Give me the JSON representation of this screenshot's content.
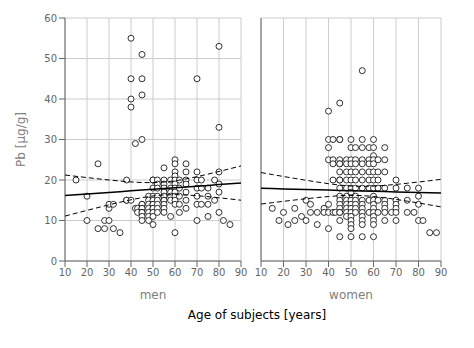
{
  "x_label": "Age of subjects [years]",
  "chart_data": [
    {
      "type": "scatter",
      "x_label": "men",
      "y_label": "Pb [μg/g]",
      "xlim": [
        10,
        90
      ],
      "ylim": [
        0,
        60
      ],
      "xticks": [
        10,
        20,
        30,
        40,
        50,
        60,
        70,
        80,
        90
      ],
      "yticks": [
        0,
        10,
        20,
        30,
        40,
        50,
        60
      ],
      "grid": true,
      "series": [
        {
          "type": "scatter",
          "marker": "open_circle",
          "color": "black",
          "x": [
            15,
            20,
            20,
            25,
            25,
            28,
            28,
            30,
            30,
            30,
            32,
            32,
            35,
            38,
            38,
            38,
            40,
            40,
            40,
            40,
            40,
            42,
            42,
            43,
            43,
            45,
            45,
            45,
            45,
            45,
            45,
            45,
            45,
            45,
            45,
            45,
            45,
            48,
            48,
            48,
            48,
            48,
            48,
            48,
            50,
            50,
            50,
            50,
            50,
            50,
            50,
            50,
            50,
            50,
            50,
            50,
            52,
            52,
            52,
            52,
            52,
            52,
            52,
            52,
            55,
            55,
            55,
            55,
            55,
            55,
            55,
            55,
            55,
            55,
            55,
            58,
            58,
            58,
            58,
            58,
            58,
            60,
            60,
            60,
            60,
            60,
            60,
            60,
            60,
            60,
            60,
            60,
            60,
            62,
            62,
            62,
            62,
            62,
            65,
            65,
            65,
            65,
            65,
            65,
            65,
            70,
            70,
            70,
            70,
            70,
            70,
            70,
            72,
            72,
            72,
            75,
            75,
            75,
            75,
            78,
            78,
            80,
            80,
            80,
            80,
            80,
            80,
            82,
            85
          ],
          "values": [
            20,
            16,
            10,
            24,
            8,
            8,
            10,
            10,
            13,
            14,
            14,
            8,
            7,
            20,
            15,
            15,
            55,
            45,
            40,
            38,
            15,
            29,
            13,
            13,
            12,
            51,
            45,
            41,
            30,
            14,
            14,
            13,
            13,
            12,
            12,
            11,
            10,
            16,
            15,
            14,
            13,
            12,
            11,
            10,
            20,
            20,
            18,
            16,
            15,
            14,
            14,
            13,
            13,
            12,
            11,
            9,
            20,
            19,
            18,
            16,
            15,
            14,
            13,
            12,
            23,
            20,
            19,
            18,
            17,
            16,
            15,
            15,
            14,
            13,
            12,
            20,
            18,
            17,
            16,
            15,
            11,
            25,
            24,
            22,
            21,
            20,
            19,
            18,
            17,
            16,
            15,
            14,
            7,
            20,
            18,
            16,
            14,
            12,
            24,
            22,
            20,
            19,
            17,
            15,
            13,
            45,
            22,
            20,
            18,
            16,
            14,
            10,
            20,
            18,
            14,
            18,
            16,
            14,
            11,
            20,
            15,
            53,
            33,
            22,
            19,
            17,
            12,
            10,
            9
          ]
        },
        {
          "type": "line",
          "line_style": "solid",
          "color": "black",
          "x": [
            10,
            15,
            20,
            25,
            30,
            35,
            40,
            45,
            50,
            55,
            60,
            65,
            70,
            75,
            80,
            85,
            90
          ],
          "values": [
            16.165,
            16.357,
            16.55,
            16.742,
            16.935,
            17.127,
            17.32,
            17.512,
            17.704,
            17.897,
            18.089,
            18.282,
            18.474,
            18.667,
            18.859,
            19.052,
            19.244
          ]
        },
        {
          "type": "line",
          "line_style": "dashed",
          "color": "black",
          "x": [
            10,
            15,
            20,
            25,
            30,
            35,
            40,
            45,
            50,
            55,
            60,
            65,
            70,
            75,
            80,
            85,
            90
          ],
          "values": [
            21.236,
            20.911,
            20.595,
            20.291,
            20.003,
            19.741,
            19.523,
            19.375,
            19.343,
            19.478,
            19.796,
            20.263,
            20.826,
            21.449,
            22.107,
            22.786,
            23.481
          ]
        },
        {
          "type": "line",
          "line_style": "dashed",
          "color": "black",
          "x": [
            10,
            15,
            20,
            25,
            30,
            35,
            40,
            45,
            50,
            55,
            60,
            65,
            70,
            75,
            80,
            85,
            90
          ],
          "values": [
            11.094,
            11.803,
            12.504,
            13.194,
            13.867,
            14.513,
            15.117,
            15.649,
            16.066,
            16.316,
            16.383,
            16.301,
            16.122,
            15.885,
            15.612,
            15.317,
            15.007
          ]
        }
      ]
    },
    {
      "type": "scatter",
      "x_label": "women",
      "xlim": [
        10,
        90
      ],
      "ylim": [
        0,
        60
      ],
      "xticks": [
        10,
        20,
        30,
        40,
        50,
        60,
        70,
        80,
        90
      ],
      "yticks": [
        0,
        10,
        20,
        30,
        40,
        50,
        60
      ],
      "grid": true,
      "tick_labels": "x",
      "series": [
        {
          "type": "scatter",
          "marker": "open_circle",
          "color": "black",
          "x": [
            15,
            18,
            20,
            22,
            25,
            25,
            28,
            30,
            30,
            32,
            32,
            35,
            35,
            38,
            38,
            40,
            40,
            40,
            40,
            40,
            40,
            40,
            42,
            42,
            42,
            42,
            42,
            43,
            45,
            45,
            45,
            45,
            45,
            45,
            45,
            45,
            45,
            45,
            45,
            45,
            45,
            45,
            45,
            45,
            45,
            45,
            48,
            48,
            48,
            48,
            48,
            48,
            48,
            48,
            48,
            48,
            48,
            50,
            50,
            50,
            50,
            50,
            50,
            50,
            50,
            50,
            50,
            50,
            50,
            50,
            50,
            50,
            50,
            50,
            52,
            52,
            52,
            52,
            52,
            52,
            52,
            52,
            52,
            52,
            52,
            55,
            55,
            55,
            55,
            55,
            55,
            55,
            55,
            55,
            55,
            55,
            55,
            55,
            55,
            55,
            55,
            58,
            58,
            58,
            58,
            58,
            58,
            58,
            58,
            60,
            60,
            60,
            60,
            60,
            60,
            60,
            60,
            60,
            60,
            60,
            60,
            60,
            60,
            60,
            60,
            60,
            62,
            62,
            62,
            62,
            62,
            62,
            65,
            65,
            65,
            65,
            65,
            65,
            65,
            65,
            65,
            68,
            70,
            70,
            70,
            70,
            70,
            70,
            70,
            75,
            75,
            75,
            78,
            80,
            80,
            80,
            80,
            82,
            85,
            88
          ],
          "values": [
            13,
            10,
            12,
            9,
            13,
            10,
            11,
            15,
            10,
            14,
            12,
            12,
            9,
            13,
            12,
            37,
            30,
            28,
            25,
            14,
            12,
            8,
            30,
            25,
            24,
            20,
            12,
            12,
            39,
            30,
            30,
            25,
            24,
            24,
            22,
            20,
            20,
            18,
            16,
            15,
            14,
            13,
            12,
            12,
            10,
            6,
            25,
            24,
            22,
            20,
            18,
            16,
            15,
            14,
            13,
            12,
            11,
            30,
            28,
            25,
            24,
            22,
            20,
            18,
            17,
            15,
            14,
            13,
            12,
            11,
            10,
            9,
            8,
            6,
            28,
            25,
            24,
            22,
            20,
            18,
            16,
            15,
            14,
            13,
            12,
            47,
            30,
            28,
            25,
            24,
            22,
            20,
            18,
            15,
            14,
            13,
            12,
            11,
            10,
            9,
            6,
            28,
            25,
            24,
            22,
            20,
            18,
            15,
            12,
            30,
            28,
            26,
            25,
            24,
            22,
            20,
            18,
            16,
            15,
            14,
            13,
            12,
            11,
            10,
            9,
            6,
            25,
            22,
            20,
            18,
            15,
            12,
            28,
            25,
            22,
            18,
            15,
            14,
            13,
            12,
            10,
            12,
            20,
            18,
            15,
            14,
            13,
            12,
            10,
            18,
            15,
            12,
            12,
            18,
            16,
            14,
            10,
            10,
            7,
            7
          ]
        },
        {
          "type": "line",
          "line_style": "solid",
          "color": "black",
          "x": [
            10,
            15,
            20,
            25,
            30,
            35,
            40,
            45,
            50,
            55,
            60,
            65,
            70,
            75,
            80,
            85,
            90
          ],
          "values": [
            17.949,
            17.875,
            17.801,
            17.727,
            17.653,
            17.579,
            17.505,
            17.43,
            17.356,
            17.282,
            17.208,
            17.134,
            17.06,
            16.986,
            16.912,
            16.838,
            16.763
          ]
        },
        {
          "type": "line",
          "line_style": "dashed",
          "color": "black",
          "x": [
            10,
            15,
            20,
            25,
            30,
            35,
            40,
            45,
            50,
            55,
            60,
            65,
            70,
            75,
            80,
            85,
            90
          ],
          "values": [
            21.834,
            21.347,
            20.866,
            20.393,
            19.933,
            19.494,
            19.088,
            18.743,
            18.503,
            18.414,
            18.481,
            18.663,
            18.911,
            19.198,
            19.507,
            19.829,
            20.161
          ]
        },
        {
          "type": "line",
          "line_style": "dashed",
          "color": "black",
          "x": [
            10,
            15,
            20,
            25,
            30,
            35,
            40,
            45,
            50,
            55,
            60,
            65,
            70,
            75,
            80,
            85,
            90
          ],
          "values": [
            14.065,
            14.403,
            14.736,
            15.06,
            15.372,
            15.664,
            15.921,
            16.118,
            16.21,
            16.151,
            15.935,
            15.605,
            15.209,
            14.774,
            14.317,
            13.846,
            13.366
          ]
        }
      ]
    }
  ]
}
